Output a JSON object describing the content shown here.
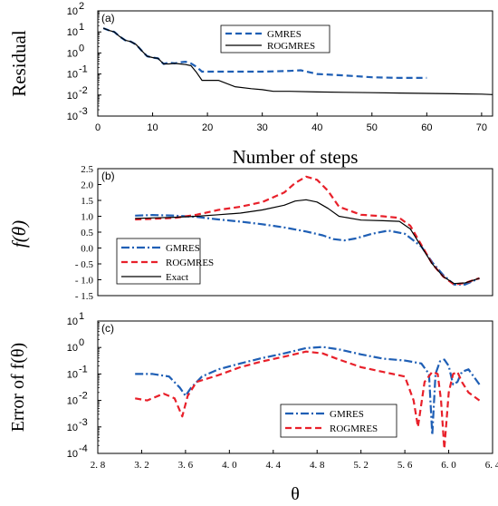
{
  "colors": {
    "blue": "#1f5fb5",
    "red": "#e8202a",
    "black": "#000000"
  },
  "chart_data": [
    {
      "id": "a",
      "type": "line",
      "panel_label": "(a)",
      "xlabel": "Number of steps",
      "ylabel": "Residual",
      "y_scale": "log",
      "xlim": [
        0,
        72
      ],
      "ylim_exp": [
        -3,
        2
      ],
      "x_ticks": [
        0,
        10,
        20,
        30,
        40,
        50,
        60,
        70
      ],
      "x_tick_labels": [
        "0",
        "10",
        "20",
        "30",
        "40",
        "50",
        "60",
        "70"
      ],
      "y_tick_exps": [
        -3,
        -2,
        -1,
        0,
        1,
        2
      ],
      "y_tick_labels": [
        "10",
        "10",
        "10",
        "10",
        "10",
        "10"
      ],
      "y_tick_sups": [
        "-3",
        "-2",
        "-1",
        "0",
        "1",
        "2"
      ],
      "legend_position": "top-center",
      "series": [
        {
          "name": "GMRES",
          "color": "blue",
          "dash": "dashed",
          "x": [
            1,
            2,
            3,
            4,
            5,
            6,
            7,
            8,
            9,
            10,
            11,
            12,
            13,
            14,
            15,
            16,
            17,
            18,
            19,
            20,
            25,
            30,
            35,
            37,
            40,
            45,
            50,
            55,
            60
          ],
          "y": [
            15,
            12,
            10,
            6,
            4,
            3.5,
            2.5,
            1.3,
            0.7,
            0.6,
            0.55,
            0.3,
            0.35,
            0.32,
            0.36,
            0.38,
            0.32,
            0.22,
            0.13,
            0.13,
            0.13,
            0.13,
            0.14,
            0.15,
            0.1,
            0.085,
            0.07,
            0.065,
            0.065
          ]
        },
        {
          "name": "ROGMRES",
          "color": "black",
          "dash": "solid",
          "x": [
            1,
            2,
            3,
            4,
            5,
            6,
            7,
            8,
            9,
            10,
            11,
            12,
            13,
            14,
            15,
            16,
            17,
            18,
            19,
            20,
            22,
            25,
            28,
            30,
            32,
            35,
            40,
            45,
            50,
            55,
            60,
            65,
            70,
            72
          ],
          "y": [
            15,
            12,
            10,
            6,
            4,
            3.5,
            2.5,
            1.3,
            0.7,
            0.6,
            0.55,
            0.3,
            0.3,
            0.32,
            0.3,
            0.28,
            0.25,
            0.12,
            0.05,
            0.05,
            0.05,
            0.025,
            0.02,
            0.018,
            0.015,
            0.015,
            0.014,
            0.0135,
            0.013,
            0.0125,
            0.012,
            0.0115,
            0.011,
            0.0105
          ]
        }
      ]
    },
    {
      "id": "b",
      "type": "line",
      "panel_label": "(b)",
      "xlabel": "",
      "ylabel": "f(θ)",
      "xlim": [
        2.8,
        6.4
      ],
      "ylim": [
        -1.5,
        2.5
      ],
      "y_ticks": [
        -1.5,
        -1.0,
        -0.5,
        0.0,
        0.5,
        1.0,
        1.5,
        2.0,
        2.5
      ],
      "y_tick_labels": [
        "- 1.5",
        "- 1.0",
        "- 0.5",
        "0.0",
        "0.5",
        "1.0",
        "1.5",
        "2.0",
        "2.5"
      ],
      "legend_position": "bottom-left",
      "series": [
        {
          "name": "GMRES",
          "color": "blue",
          "dash": "dashdot",
          "x": [
            3.14,
            3.3,
            3.5,
            3.7,
            3.9,
            4.1,
            4.3,
            4.5,
            4.7,
            4.85,
            4.95,
            5.05,
            5.15,
            5.3,
            5.45,
            5.6,
            5.75,
            5.85,
            5.95,
            6.05,
            6.15,
            6.28
          ],
          "y": [
            1.02,
            1.04,
            1.02,
            0.98,
            0.9,
            0.83,
            0.75,
            0.65,
            0.52,
            0.4,
            0.28,
            0.24,
            0.3,
            0.45,
            0.55,
            0.45,
            0.05,
            -0.45,
            -0.85,
            -1.15,
            -1.15,
            -0.95
          ]
        },
        {
          "name": "ROGMRES",
          "color": "red",
          "dash": "dashed",
          "x": [
            3.14,
            3.3,
            3.5,
            3.7,
            3.9,
            4.1,
            4.3,
            4.5,
            4.6,
            4.7,
            4.8,
            4.9,
            5.0,
            5.2,
            5.4,
            5.55,
            5.65,
            5.75,
            5.85,
            5.95,
            6.05,
            6.15,
            6.28
          ],
          "y": [
            0.9,
            0.92,
            0.95,
            1.05,
            1.2,
            1.3,
            1.45,
            1.75,
            2.05,
            2.25,
            2.15,
            1.8,
            1.3,
            1.05,
            1.0,
            0.95,
            0.7,
            0.1,
            -0.5,
            -0.9,
            -1.15,
            -1.1,
            -0.95
          ]
        },
        {
          "name": "Exact",
          "color": "black",
          "dash": "solid",
          "x": [
            3.14,
            3.3,
            3.5,
            3.7,
            3.9,
            4.1,
            4.3,
            4.5,
            4.6,
            4.7,
            4.8,
            4.9,
            5.0,
            5.2,
            5.4,
            5.55,
            5.65,
            5.75,
            5.85,
            5.95,
            6.05,
            6.15,
            6.28
          ],
          "y": [
            0.93,
            0.95,
            0.97,
            1.0,
            1.05,
            1.1,
            1.2,
            1.35,
            1.48,
            1.52,
            1.45,
            1.25,
            1.0,
            0.88,
            0.86,
            0.84,
            0.6,
            0.05,
            -0.5,
            -0.9,
            -1.12,
            -1.1,
            -0.95
          ]
        }
      ]
    },
    {
      "id": "c",
      "type": "line",
      "panel_label": "(c)",
      "xlabel": "θ",
      "ylabel": "Error of f(θ)",
      "y_scale": "log",
      "xlim": [
        2.8,
        6.4
      ],
      "ylim_exp": [
        -4,
        1
      ],
      "x_ticks": [
        2.8,
        3.2,
        3.6,
        4.0,
        4.4,
        4.8,
        5.2,
        5.6,
        6.0,
        6.4
      ],
      "x_tick_labels": [
        "2. 8",
        "3. 2",
        "3. 6",
        "4. 0",
        "4. 4",
        "4. 8",
        "5. 2",
        "5. 6",
        "6. 0",
        "6. 4"
      ],
      "y_tick_exps": [
        -4,
        -3,
        -2,
        -1,
        0,
        1
      ],
      "y_tick_labels": [
        "10",
        "10",
        "10",
        "10",
        "10",
        "10"
      ],
      "y_tick_sups": [
        "-4",
        "-3",
        "-2",
        "-1",
        "0",
        "1"
      ],
      "legend_position": "bottom-right",
      "series": [
        {
          "name": "GMRES",
          "color": "blue",
          "dash": "dashdot",
          "x": [
            3.14,
            3.3,
            3.45,
            3.55,
            3.6,
            3.65,
            3.75,
            3.9,
            4.1,
            4.3,
            4.5,
            4.7,
            4.85,
            5.0,
            5.2,
            5.4,
            5.6,
            5.75,
            5.82,
            5.85,
            5.88,
            5.92,
            5.96,
            6.0,
            6.04,
            6.08,
            6.12,
            6.18,
            6.28
          ],
          "y": [
            0.1,
            0.1,
            0.08,
            0.03,
            0.015,
            0.03,
            0.08,
            0.15,
            0.25,
            0.4,
            0.6,
            0.95,
            1.05,
            0.85,
            0.55,
            0.38,
            0.32,
            0.25,
            0.1,
            0.0005,
            0.1,
            0.3,
            0.35,
            0.2,
            0.04,
            0.05,
            0.12,
            0.15,
            0.04
          ]
        },
        {
          "name": "ROGMRES",
          "color": "red",
          "dash": "dashed",
          "x": [
            3.14,
            3.25,
            3.4,
            3.5,
            3.57,
            3.62,
            3.7,
            3.9,
            4.1,
            4.3,
            4.5,
            4.7,
            4.85,
            5.0,
            5.2,
            5.4,
            5.6,
            5.68,
            5.72,
            5.78,
            5.85,
            5.9,
            5.93,
            5.96,
            6.0,
            6.04,
            6.08,
            6.12,
            6.18,
            6.28
          ],
          "y": [
            0.012,
            0.01,
            0.018,
            0.012,
            0.0025,
            0.015,
            0.05,
            0.09,
            0.18,
            0.3,
            0.45,
            0.7,
            0.6,
            0.35,
            0.18,
            0.12,
            0.08,
            0.01,
            0.001,
            0.05,
            0.12,
            0.1,
            0.01,
            0.00015,
            0.02,
            0.1,
            0.12,
            0.05,
            0.02,
            0.01
          ]
        }
      ]
    }
  ]
}
